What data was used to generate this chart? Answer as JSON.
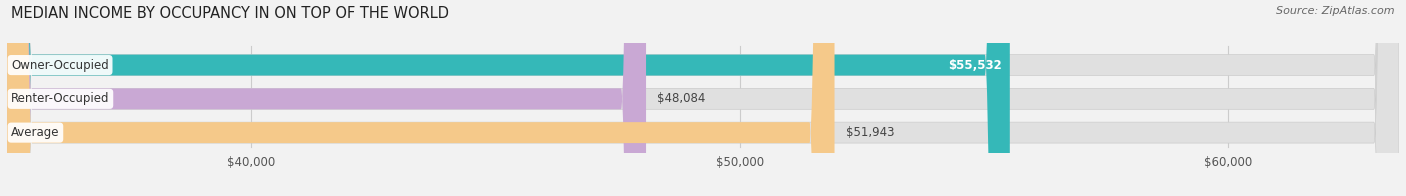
{
  "title": "MEDIAN INCOME BY OCCUPANCY IN ON TOP OF THE WORLD",
  "source": "Source: ZipAtlas.com",
  "categories": [
    "Owner-Occupied",
    "Renter-Occupied",
    "Average"
  ],
  "values": [
    55532,
    48084,
    51943
  ],
  "bar_colors": [
    "#35b8b8",
    "#c9a8d4",
    "#f5c98a"
  ],
  "value_labels": [
    "$55,532",
    "$48,084",
    "$51,943"
  ],
  "value_inside": [
    true,
    false,
    false
  ],
  "xlim": [
    35000,
    63500
  ],
  "xticks": [
    40000,
    50000,
    60000
  ],
  "xtick_labels": [
    "$40,000",
    "$50,000",
    "$60,000"
  ],
  "bar_height": 0.62,
  "background_color": "#f2f2f2",
  "bar_bg_color": "#e0e0e0",
  "title_fontsize": 10.5,
  "label_fontsize": 8.5,
  "value_fontsize": 8.5,
  "source_fontsize": 8
}
